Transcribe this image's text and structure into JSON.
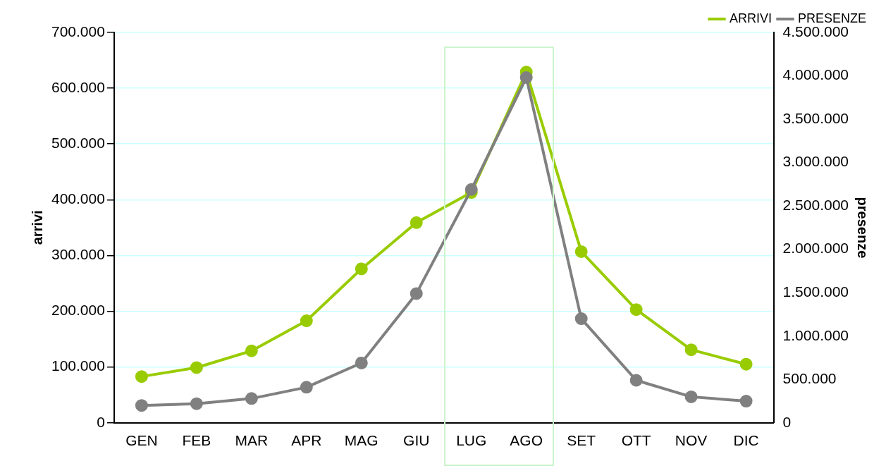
{
  "chart_data": {
    "type": "line",
    "ylabel": "arrivi",
    "y2label": "presenze",
    "categories": [
      "GEN",
      "FEB",
      "MAR",
      "APR",
      "MAG",
      "GIU",
      "LUG",
      "AGO",
      "SET",
      "OTT",
      "NOV",
      "DIC"
    ],
    "series": [
      {
        "name": "ARRIVI",
        "color": "#99cc00",
        "values": [
          83000,
          99000,
          129000,
          183000,
          276000,
          359000,
          413000,
          629000,
          307000,
          203000,
          131000,
          105000
        ]
      },
      {
        "name": "PRESENZE",
        "color": "#808080",
        "axis": "y2",
        "values": [
          200000,
          220000,
          280000,
          410000,
          690000,
          1490000,
          2690000,
          3980000,
          1200000,
          490000,
          300000,
          250000
        ]
      }
    ],
    "ylim": [
      0,
      700000
    ],
    "yticks": [
      {
        "value": 0,
        "label": "0"
      },
      {
        "value": 100000,
        "label": "100.000"
      },
      {
        "value": 200000,
        "label": "200.000"
      },
      {
        "value": 300000,
        "label": "300.000"
      },
      {
        "value": 400000,
        "label": "400.000"
      },
      {
        "value": 500000,
        "label": "500.000"
      },
      {
        "value": 600000,
        "label": "600.000"
      },
      {
        "value": 700000,
        "label": "700.000"
      }
    ],
    "y2lim": [
      0,
      4500000
    ],
    "y2ticks": [
      {
        "value": 0,
        "label": "0"
      },
      {
        "value": 500000,
        "label": "500.000"
      },
      {
        "value": 1000000,
        "label": "1.000.000"
      },
      {
        "value": 1500000,
        "label": "1.500.000"
      },
      {
        "value": 2000000,
        "label": "2.000.000"
      },
      {
        "value": 2500000,
        "label": "2.500.000"
      },
      {
        "value": 3000000,
        "label": "3.000.000"
      },
      {
        "value": 3500000,
        "label": "3.500.000"
      },
      {
        "value": 4000000,
        "label": "4.000.000"
      },
      {
        "value": 4500000,
        "label": "4.500.000"
      }
    ],
    "grid": "y",
    "legend": "top right",
    "marker": "circle",
    "line_style": "solid"
  }
}
